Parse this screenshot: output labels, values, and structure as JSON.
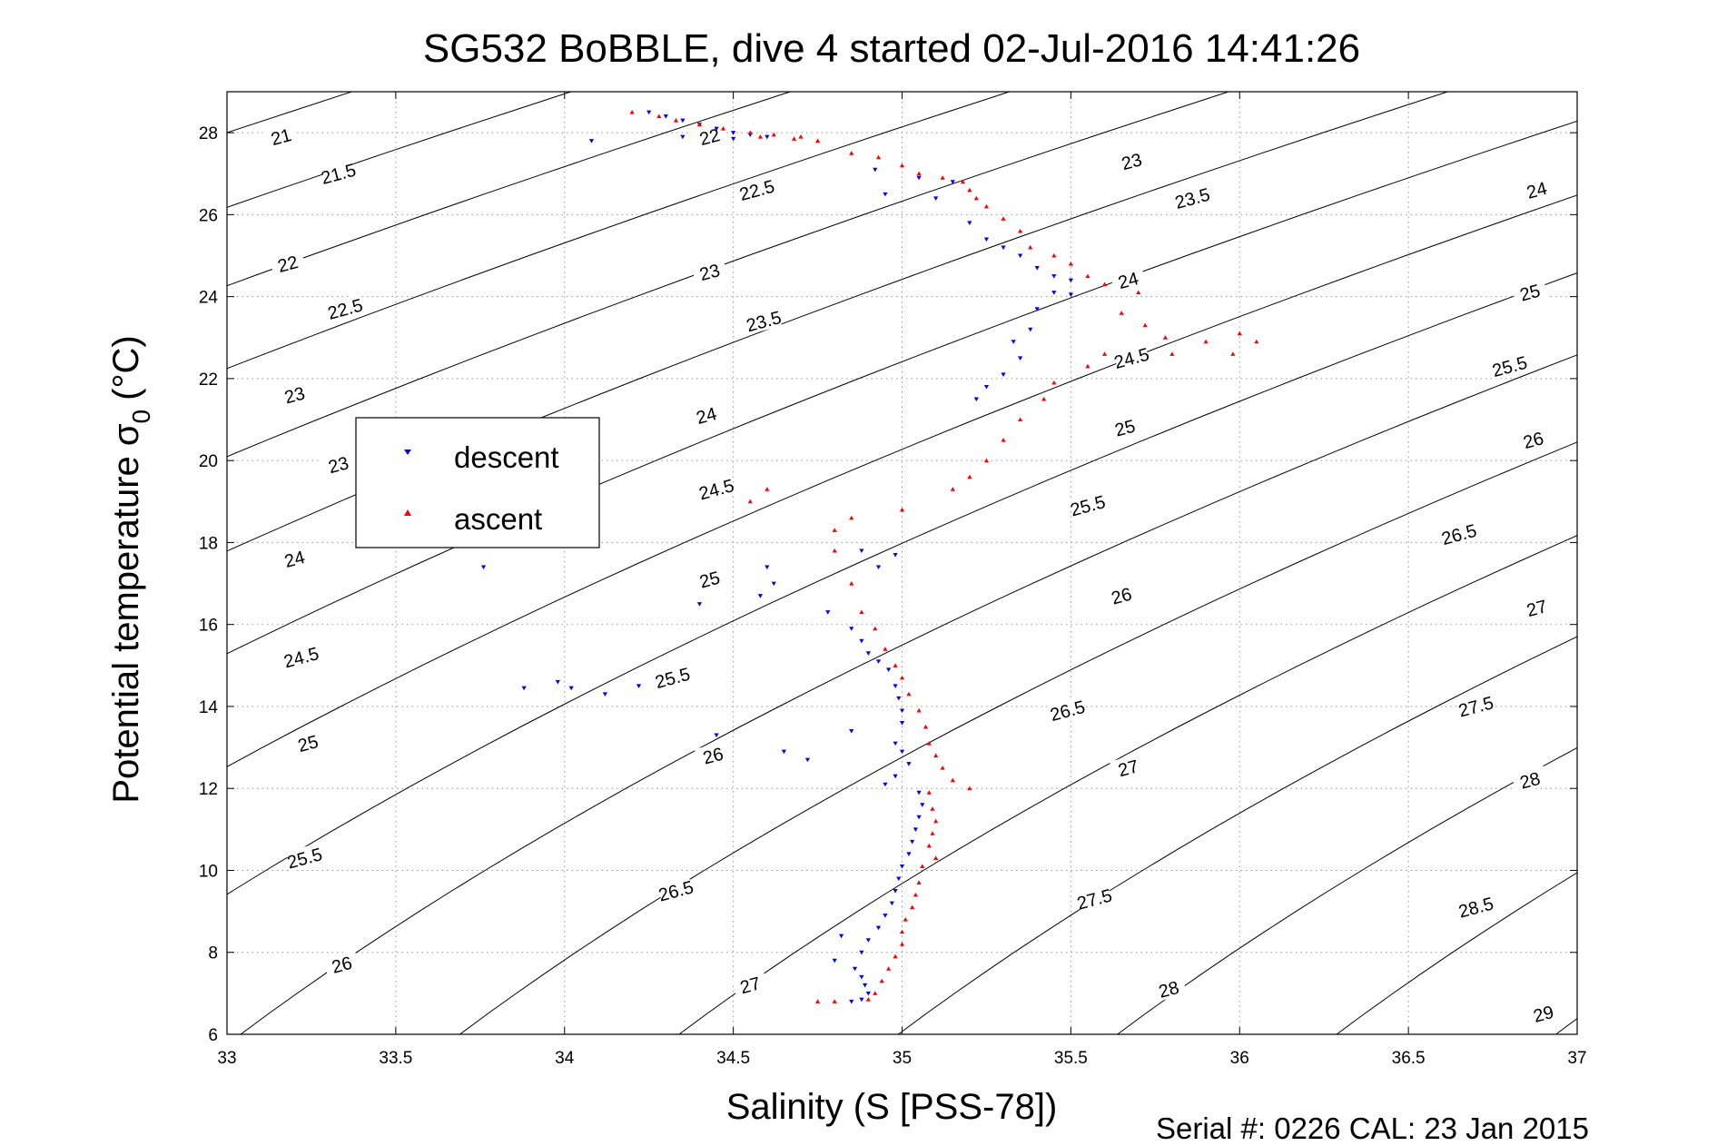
{
  "chart_data": {
    "type": "scatter",
    "title": "SG532 BoBBLE, dive 4 started 02-Jul-2016 14:41:26",
    "xlabel": "Salinity (S [PSS-78])",
    "ylabel_main": "Potential temperature σ",
    "ylabel_sub": "0",
    "ylabel_unit": "(°C)",
    "footer": "Serial #: 0226  CAL: 23 Jan 2015",
    "xlim": [
      33,
      37
    ],
    "ylim": [
      6,
      29
    ],
    "xticks": [
      "33",
      "33.5",
      "34",
      "34.5",
      "35",
      "35.5",
      "36",
      "36.5",
      "37"
    ],
    "xtick_values": [
      33,
      33.5,
      34,
      34.5,
      35,
      35.5,
      36,
      36.5,
      37
    ],
    "yticks": [
      "6",
      "8",
      "10",
      "12",
      "14",
      "16",
      "18",
      "20",
      "22",
      "24",
      "26",
      "28"
    ],
    "ytick_values": [
      6,
      8,
      10,
      12,
      14,
      16,
      18,
      20,
      22,
      24,
      26,
      28
    ],
    "grid": true,
    "legend_position": "left-middle",
    "contour_labels": [
      {
        "text": "21",
        "x": 33.16,
        "y": 27.9
      },
      {
        "text": "21.5",
        "x": 33.33,
        "y": 27.0
      },
      {
        "text": "22",
        "x": 34.43,
        "y": 27.9
      },
      {
        "text": "22",
        "x": 33.18,
        "y": 24.8
      },
      {
        "text": "22.5",
        "x": 34.57,
        "y": 26.6
      },
      {
        "text": "22.5",
        "x": 33.35,
        "y": 23.7
      },
      {
        "text": "23",
        "x": 35.68,
        "y": 27.3
      },
      {
        "text": "23",
        "x": 34.43,
        "y": 24.6
      },
      {
        "text": "23",
        "x": 33.2,
        "y": 21.6
      },
      {
        "text": "23",
        "x": 33.33,
        "y": 19.9
      },
      {
        "text": "23.5",
        "x": 35.86,
        "y": 26.4
      },
      {
        "text": "23.5",
        "x": 34.59,
        "y": 23.4
      },
      {
        "text": "24",
        "x": 36.88,
        "y": 26.6
      },
      {
        "text": "24",
        "x": 35.67,
        "y": 24.4
      },
      {
        "text": "24",
        "x": 34.42,
        "y": 21.1
      },
      {
        "text": "24",
        "x": 33.2,
        "y": 17.6
      },
      {
        "text": "24.5",
        "x": 35.68,
        "y": 22.5
      },
      {
        "text": "24.5",
        "x": 34.45,
        "y": 19.3
      },
      {
        "text": "24.5",
        "x": 33.22,
        "y": 15.2
      },
      {
        "text": "25",
        "x": 36.86,
        "y": 24.1
      },
      {
        "text": "25",
        "x": 35.66,
        "y": 20.8
      },
      {
        "text": "25",
        "x": 34.43,
        "y": 17.1
      },
      {
        "text": "25",
        "x": 33.24,
        "y": 13.1
      },
      {
        "text": "25.5",
        "x": 36.8,
        "y": 22.3
      },
      {
        "text": "25.5",
        "x": 35.55,
        "y": 18.9
      },
      {
        "text": "25.5",
        "x": 34.32,
        "y": 14.7
      },
      {
        "text": "25.5",
        "x": 33.23,
        "y": 10.3
      },
      {
        "text": "26",
        "x": 36.87,
        "y": 20.5
      },
      {
        "text": "26",
        "x": 35.65,
        "y": 16.7
      },
      {
        "text": "26",
        "x": 34.44,
        "y": 12.8
      },
      {
        "text": "26",
        "x": 33.34,
        "y": 7.7
      },
      {
        "text": "26.5",
        "x": 36.65,
        "y": 18.2
      },
      {
        "text": "26.5",
        "x": 35.49,
        "y": 13.9
      },
      {
        "text": "26.5",
        "x": 34.33,
        "y": 9.5
      },
      {
        "text": "27",
        "x": 36.88,
        "y": 16.4
      },
      {
        "text": "27",
        "x": 35.67,
        "y": 12.5
      },
      {
        "text": "27",
        "x": 34.55,
        "y": 7.2
      },
      {
        "text": "27.5",
        "x": 36.7,
        "y": 14.0
      },
      {
        "text": "27.5",
        "x": 35.57,
        "y": 9.3
      },
      {
        "text": "28",
        "x": 36.86,
        "y": 12.2
      },
      {
        "text": "28",
        "x": 35.79,
        "y": 7.1
      },
      {
        "text": "28.5",
        "x": 36.7,
        "y": 9.1
      },
      {
        "text": "29",
        "x": 36.9,
        "y": 6.5
      }
    ],
    "series": [
      {
        "name": "descent",
        "color": "#0000ff",
        "marker": "triangle-down",
        "points": [
          [
            34.25,
            28.5
          ],
          [
            34.3,
            28.4
          ],
          [
            34.35,
            28.3
          ],
          [
            34.4,
            28.2
          ],
          [
            34.45,
            28.1
          ],
          [
            34.5,
            28.0
          ],
          [
            34.55,
            27.95
          ],
          [
            34.6,
            27.9
          ],
          [
            34.08,
            27.8
          ],
          [
            34.35,
            27.9
          ],
          [
            34.5,
            27.85
          ],
          [
            34.92,
            27.1
          ],
          [
            35.05,
            26.9
          ],
          [
            35.15,
            26.8
          ],
          [
            34.95,
            26.5
          ],
          [
            35.1,
            26.4
          ],
          [
            35.2,
            25.8
          ],
          [
            35.25,
            25.4
          ],
          [
            35.3,
            25.2
          ],
          [
            35.35,
            25.0
          ],
          [
            35.4,
            24.7
          ],
          [
            35.45,
            24.5
          ],
          [
            35.5,
            24.4
          ],
          [
            35.45,
            24.1
          ],
          [
            35.5,
            24.05
          ],
          [
            35.4,
            23.7
          ],
          [
            35.38,
            23.2
          ],
          [
            35.33,
            22.9
          ],
          [
            35.35,
            22.5
          ],
          [
            35.3,
            22.1
          ],
          [
            35.25,
            21.8
          ],
          [
            35.22,
            21.5
          ],
          [
            34.88,
            17.8
          ],
          [
            34.98,
            17.7
          ],
          [
            34.93,
            17.4
          ],
          [
            34.6,
            17.4
          ],
          [
            34.62,
            17.0
          ],
          [
            34.78,
            16.3
          ],
          [
            34.4,
            16.5
          ],
          [
            34.58,
            16.7
          ],
          [
            34.85,
            15.9
          ],
          [
            34.88,
            15.6
          ],
          [
            34.9,
            15.3
          ],
          [
            34.93,
            15.1
          ],
          [
            34.96,
            14.9
          ],
          [
            34.98,
            14.5
          ],
          [
            34.99,
            14.2
          ],
          [
            35.0,
            13.9
          ],
          [
            35.0,
            13.6
          ],
          [
            33.88,
            14.45
          ],
          [
            33.98,
            14.6
          ],
          [
            34.02,
            14.45
          ],
          [
            34.12,
            14.3
          ],
          [
            34.22,
            14.5
          ],
          [
            34.45,
            13.3
          ],
          [
            34.65,
            12.9
          ],
          [
            34.72,
            12.7
          ],
          [
            34.85,
            13.4
          ],
          [
            34.98,
            13.1
          ],
          [
            35.0,
            12.9
          ],
          [
            35.02,
            12.6
          ],
          [
            34.98,
            12.3
          ],
          [
            34.95,
            12.1
          ],
          [
            35.05,
            11.9
          ],
          [
            35.06,
            11.6
          ],
          [
            35.05,
            11.3
          ],
          [
            35.04,
            11.0
          ],
          [
            35.03,
            10.7
          ],
          [
            35.02,
            10.4
          ],
          [
            35.0,
            10.1
          ],
          [
            34.99,
            9.8
          ],
          [
            34.98,
            9.5
          ],
          [
            34.97,
            9.2
          ],
          [
            34.95,
            8.9
          ],
          [
            34.93,
            8.6
          ],
          [
            34.82,
            8.4
          ],
          [
            34.9,
            8.3
          ],
          [
            34.88,
            8.0
          ],
          [
            34.8,
            7.8
          ],
          [
            34.86,
            7.6
          ],
          [
            34.88,
            7.4
          ],
          [
            34.89,
            7.2
          ],
          [
            34.9,
            7.0
          ],
          [
            34.88,
            6.85
          ],
          [
            34.85,
            6.8
          ],
          [
            33.76,
            17.4
          ]
        ]
      },
      {
        "name": "ascent",
        "color": "#ff0000",
        "marker": "triangle-up",
        "points": [
          [
            34.2,
            28.5
          ],
          [
            34.28,
            28.4
          ],
          [
            34.33,
            28.3
          ],
          [
            34.4,
            28.2
          ],
          [
            34.47,
            28.1
          ],
          [
            34.55,
            28.0
          ],
          [
            34.62,
            27.95
          ],
          [
            34.7,
            27.9
          ],
          [
            34.75,
            27.8
          ],
          [
            34.68,
            27.85
          ],
          [
            34.58,
            27.9
          ],
          [
            34.85,
            27.5
          ],
          [
            34.93,
            27.4
          ],
          [
            35.0,
            27.2
          ],
          [
            35.05,
            27.0
          ],
          [
            35.12,
            26.9
          ],
          [
            35.18,
            26.8
          ],
          [
            35.2,
            26.6
          ],
          [
            35.22,
            26.4
          ],
          [
            35.25,
            26.2
          ],
          [
            35.3,
            25.9
          ],
          [
            35.35,
            25.6
          ],
          [
            35.38,
            25.2
          ],
          [
            35.45,
            25.0
          ],
          [
            35.5,
            24.8
          ],
          [
            35.55,
            24.5
          ],
          [
            35.6,
            24.3
          ],
          [
            35.7,
            24.1
          ],
          [
            35.65,
            23.6
          ],
          [
            35.72,
            23.3
          ],
          [
            35.78,
            23.0
          ],
          [
            35.8,
            22.6
          ],
          [
            35.9,
            22.9
          ],
          [
            36.0,
            23.1
          ],
          [
            36.05,
            22.9
          ],
          [
            35.98,
            22.6
          ],
          [
            35.6,
            22.6
          ],
          [
            35.55,
            22.3
          ],
          [
            35.45,
            21.9
          ],
          [
            35.42,
            21.5
          ],
          [
            35.35,
            21.0
          ],
          [
            35.3,
            20.5
          ],
          [
            35.25,
            20.0
          ],
          [
            35.2,
            19.6
          ],
          [
            35.15,
            19.3
          ],
          [
            34.6,
            19.3
          ],
          [
            34.55,
            19.0
          ],
          [
            35.0,
            18.8
          ],
          [
            34.85,
            18.6
          ],
          [
            34.8,
            18.3
          ],
          [
            34.8,
            17.8
          ],
          [
            34.85,
            17.0
          ],
          [
            34.88,
            16.3
          ],
          [
            34.92,
            15.9
          ],
          [
            34.95,
            15.4
          ],
          [
            34.98,
            15.0
          ],
          [
            35.0,
            14.7
          ],
          [
            35.02,
            14.3
          ],
          [
            35.05,
            13.9
          ],
          [
            35.07,
            13.5
          ],
          [
            35.08,
            13.1
          ],
          [
            35.1,
            12.8
          ],
          [
            35.12,
            12.5
          ],
          [
            35.15,
            12.2
          ],
          [
            35.2,
            12.0
          ],
          [
            35.08,
            11.9
          ],
          [
            35.09,
            11.5
          ],
          [
            35.1,
            11.2
          ],
          [
            35.09,
            10.9
          ],
          [
            35.08,
            10.6
          ],
          [
            35.1,
            10.3
          ],
          [
            35.06,
            10.1
          ],
          [
            35.05,
            9.7
          ],
          [
            35.04,
            9.4
          ],
          [
            35.03,
            9.1
          ],
          [
            35.01,
            8.8
          ],
          [
            35.0,
            8.5
          ],
          [
            35.0,
            8.2
          ],
          [
            34.98,
            7.9
          ],
          [
            34.96,
            7.6
          ],
          [
            34.94,
            7.3
          ],
          [
            34.92,
            7.0
          ],
          [
            34.9,
            6.85
          ],
          [
            34.8,
            6.8
          ],
          [
            34.75,
            6.8
          ]
        ]
      }
    ]
  }
}
